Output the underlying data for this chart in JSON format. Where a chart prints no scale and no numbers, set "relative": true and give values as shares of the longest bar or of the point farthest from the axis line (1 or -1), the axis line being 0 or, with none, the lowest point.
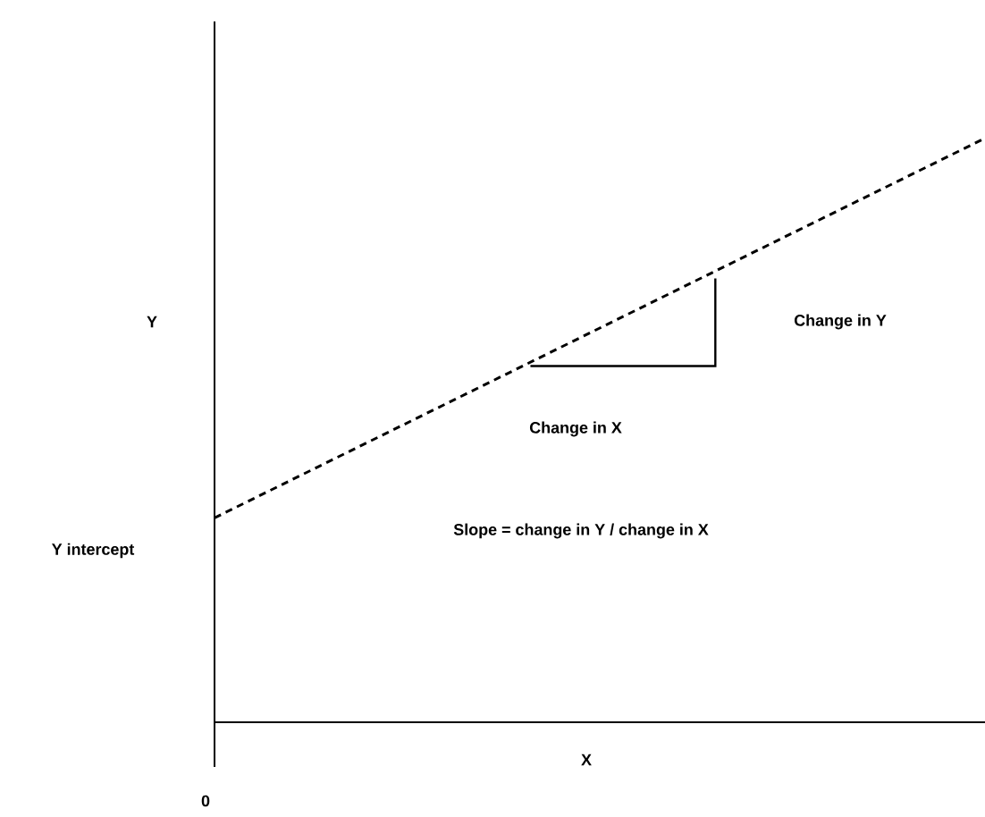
{
  "chart_data": {
    "type": "line",
    "relative": true,
    "xlabel": "X",
    "ylabel": "Y",
    "categories": [
      null,
      null
    ],
    "series": [
      {
        "values": [
          0.35,
          1.0
        ],
        "color": "#000000",
        "line_style": "dashed"
      }
    ],
    "annotations": [
      "Change in Y",
      "Change in X",
      "Slope = change in Y / change in X",
      "Y intercept",
      "0"
    ],
    "marker": "none"
  }
}
